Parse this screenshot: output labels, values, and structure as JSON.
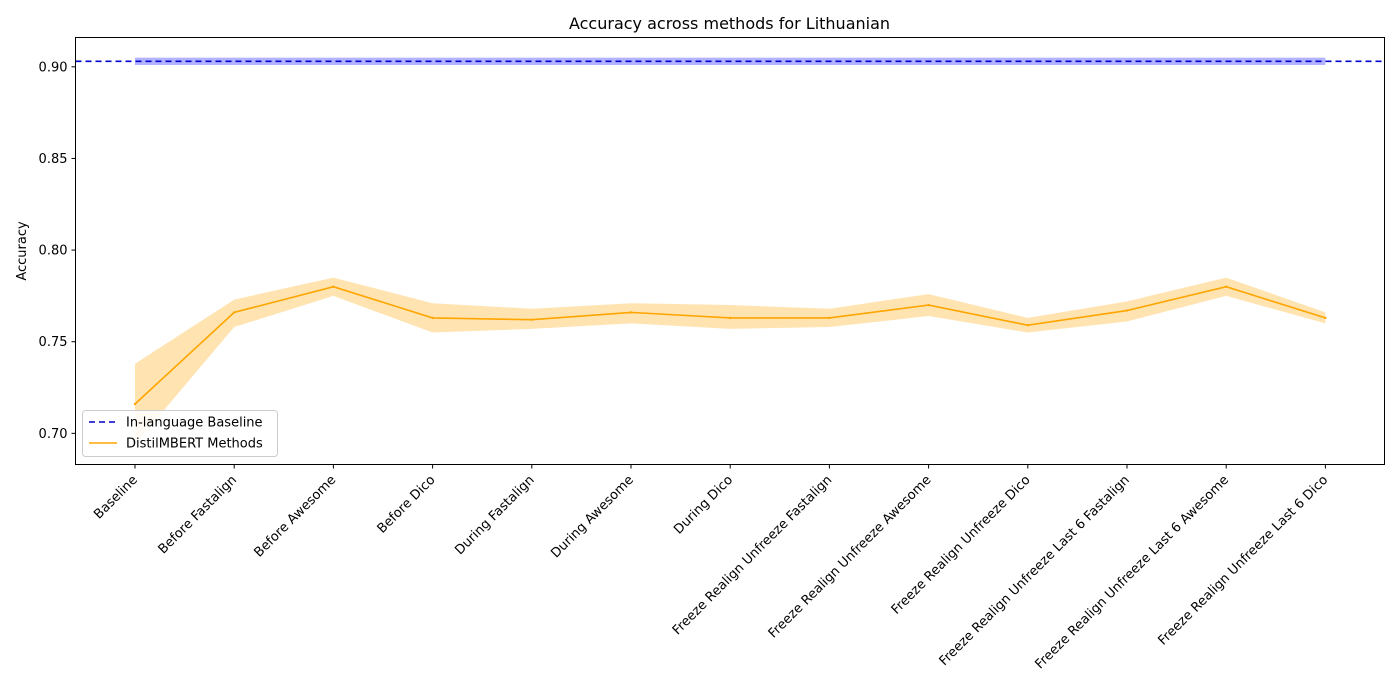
{
  "chart_data": {
    "type": "line",
    "title": "Accuracy across methods for Lithuanian",
    "xlabel": "",
    "ylabel": "Accuracy",
    "ylim": [
      0.683,
      0.916
    ],
    "yticks": [
      0.7,
      0.75,
      0.8,
      0.85,
      0.9
    ],
    "ytick_labels": [
      "0.70",
      "0.75",
      "0.80",
      "0.85",
      "0.90"
    ],
    "grid": false,
    "legend_position": "lower-left",
    "categories": [
      "Baseline",
      "Before Fastalign",
      "Before Awesome",
      "Before Dico",
      "During Fastalign",
      "During Awesome",
      "During Dico",
      "Freeze Realign Unfreeze Fastalign",
      "Freeze Realign Unfreeze Awesome",
      "Freeze Realign Unfreeze Dico",
      "Freeze Realign Unfreeze Last 6 Fastalign",
      "Freeze Realign Unfreeze Last 6 Awesome",
      "Freeze Realign Unfreeze Last 6 Dico"
    ],
    "series": [
      {
        "name": "DistilMBERT Methods",
        "color": "#ffa500",
        "band_color": "#ffa500",
        "values": [
          0.716,
          0.766,
          0.78,
          0.763,
          0.762,
          0.766,
          0.763,
          0.763,
          0.77,
          0.759,
          0.767,
          0.78,
          0.763
        ],
        "upper": [
          0.738,
          0.773,
          0.785,
          0.771,
          0.768,
          0.771,
          0.77,
          0.768,
          0.776,
          0.763,
          0.772,
          0.785,
          0.766
        ],
        "lower": [
          0.694,
          0.758,
          0.775,
          0.755,
          0.757,
          0.76,
          0.757,
          0.758,
          0.764,
          0.755,
          0.761,
          0.775,
          0.76
        ]
      }
    ],
    "reference_line": {
      "name": "In-language Baseline",
      "color": "#0000cc",
      "band_color": "#0000ff",
      "value": 0.903,
      "band_upper": 0.905,
      "band_lower": 0.901
    }
  }
}
